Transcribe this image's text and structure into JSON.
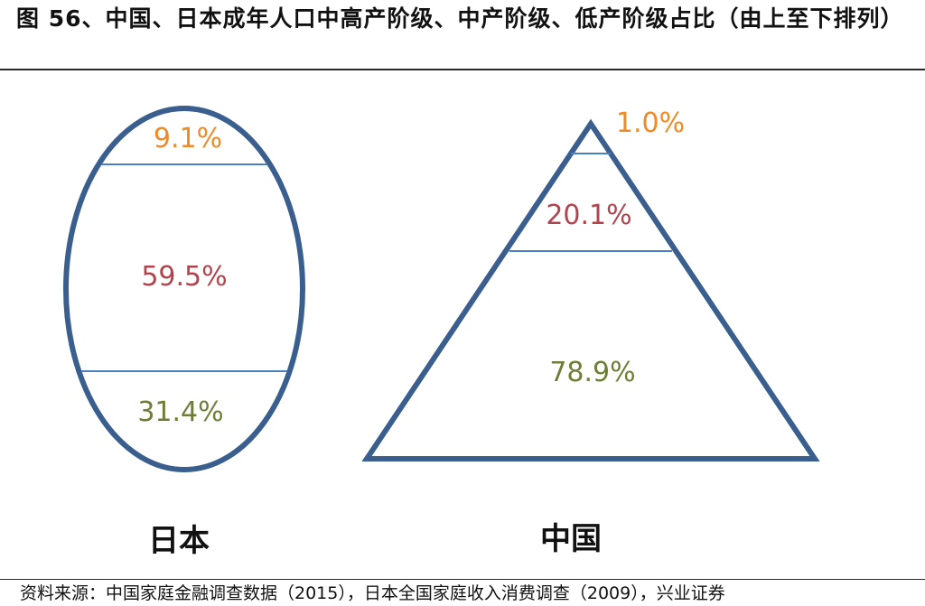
{
  "title": "图 56、中国、日本成年人口中高产阶级、中产阶级、低产阶级占比（由上至下排列）",
  "colors": {
    "outline": "#3a5f8e",
    "divider": "#4a7fc0",
    "high": "#f08a24",
    "middle": "#b2444e",
    "low": "#6d7f36"
  },
  "japan": {
    "label": "日本",
    "shape": "ellipse",
    "high": "9.1%",
    "middle": "59.5%",
    "low": "31.4%"
  },
  "china": {
    "label": "中国",
    "shape": "triangle",
    "high": "1.0%",
    "middle": "20.1%",
    "low": "78.9%"
  },
  "source": "资料来源：中国家庭金融调查数据（2015），日本全国家庭收入消费调查（2009），兴业证券"
}
